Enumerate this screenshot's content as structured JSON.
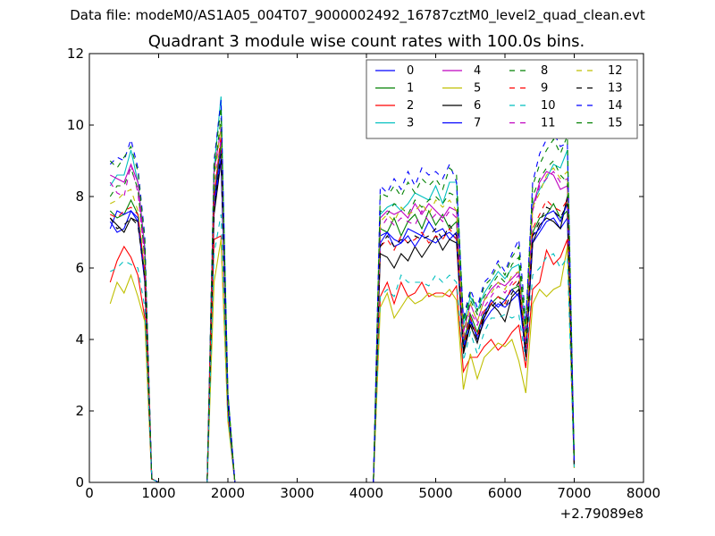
{
  "supertitle": "Data file: modeM0/AS1A05_004T07_9000002492_16787cztM0_level2_quad_clean.evt",
  "chart_data": {
    "type": "line",
    "title": "Quadrant 3 module wise count rates with 100.0s bins.",
    "xlabel": "",
    "ylabel": "",
    "x_offset_label": "+2.79089e8",
    "xlim": [
      0,
      8000
    ],
    "ylim": [
      0,
      12
    ],
    "xticks": [
      "0",
      "1000",
      "2000",
      "3000",
      "4000",
      "5000",
      "6000",
      "7000",
      "8000"
    ],
    "yticks": [
      "0",
      "2",
      "4",
      "6",
      "8",
      "10",
      "12"
    ],
    "legend_position": "top-right",
    "legend_columns": 4,
    "x": [
      300,
      400,
      500,
      600,
      700,
      800,
      900,
      1000,
      1100,
      1200,
      1300,
      1400,
      1500,
      1600,
      1700,
      1800,
      1900,
      2000,
      2100,
      2200,
      2300,
      2400,
      2500,
      2600,
      2700,
      2800,
      2900,
      3000,
      3100,
      3200,
      3300,
      3400,
      3500,
      3600,
      3700,
      3800,
      3900,
      4000,
      4100,
      4200,
      4300,
      4400,
      4500,
      4600,
      4700,
      4800,
      4900,
      5000,
      5100,
      5200,
      5300,
      5400,
      5500,
      5600,
      5700,
      5800,
      5900,
      6000,
      6100,
      6200,
      6300,
      6400,
      6500,
      6600,
      6700,
      6800,
      6900,
      7000
    ],
    "series": [
      {
        "name": "0",
        "color": "#0000ff",
        "dash": false,
        "values": [
          7.3,
          7.0,
          7.1,
          7.6,
          7.3,
          5.6,
          0.1,
          0,
          0,
          0,
          0,
          0,
          0,
          0,
          0,
          7.8,
          9.4,
          2.1,
          0,
          0,
          0,
          0,
          0,
          0,
          0,
          0,
          0,
          0,
          0,
          0,
          0,
          0,
          0,
          0,
          0,
          0,
          0,
          0,
          0,
          6.9,
          7.0,
          6.8,
          6.7,
          7.1,
          7.0,
          6.9,
          7.3,
          7.0,
          7.1,
          6.8,
          7.0,
          3.7,
          4.6,
          4.0,
          4.5,
          4.8,
          5.0,
          4.9,
          5.1,
          5.3,
          3.6,
          6.7,
          7.0,
          7.3,
          7.4,
          7.1,
          7.4,
          0.5
        ]
      },
      {
        "name": "1",
        "color": "#008000",
        "dash": false,
        "values": [
          7.6,
          7.4,
          7.5,
          7.9,
          7.5,
          5.8,
          0.1,
          0,
          0,
          0,
          0,
          0,
          0,
          0,
          0,
          8.0,
          9.5,
          2.2,
          0,
          0,
          0,
          0,
          0,
          0,
          0,
          0,
          0,
          0,
          0,
          0,
          0,
          0,
          0,
          0,
          0,
          0,
          0,
          0,
          0,
          7.1,
          7.0,
          7.4,
          6.9,
          7.3,
          7.5,
          7.1,
          7.6,
          7.2,
          7.5,
          7.1,
          7.3,
          3.9,
          4.7,
          4.2,
          4.8,
          5.0,
          5.2,
          5.1,
          5.4,
          5.5,
          3.7,
          7.0,
          7.4,
          7.5,
          7.8,
          7.4,
          7.6,
          0.5
        ]
      },
      {
        "name": "2",
        "color": "#ff0000",
        "dash": false,
        "values": [
          5.6,
          6.2,
          6.6,
          6.3,
          5.8,
          4.6,
          0.1,
          0,
          0,
          0,
          0,
          0,
          0,
          0,
          0,
          6.8,
          6.9,
          1.8,
          0,
          0,
          0,
          0,
          0,
          0,
          0,
          0,
          0,
          0,
          0,
          0,
          0,
          0,
          0,
          0,
          0,
          0,
          0,
          0,
          0,
          5.2,
          5.6,
          5.0,
          5.6,
          5.2,
          5.3,
          5.6,
          5.2,
          5.3,
          5.3,
          5.2,
          5.5,
          3.1,
          3.5,
          3.5,
          3.8,
          4.0,
          3.7,
          3.9,
          4.2,
          4.4,
          3.2,
          5.4,
          5.6,
          6.5,
          6.1,
          6.3,
          6.8,
          0.4
        ]
      },
      {
        "name": "3",
        "color": "#00bfbf",
        "dash": false,
        "values": [
          8.3,
          8.6,
          8.6,
          9.3,
          8.4,
          6.6,
          0.1,
          0,
          0,
          0,
          0,
          0,
          0,
          0,
          0,
          8.8,
          10.8,
          2.5,
          0,
          0,
          0,
          0,
          0,
          0,
          0,
          0,
          0,
          0,
          0,
          0,
          0,
          0,
          0,
          0,
          0,
          0,
          0,
          0,
          0,
          7.5,
          7.7,
          7.8,
          7.6,
          7.8,
          8.1,
          8.0,
          7.9,
          8.3,
          7.8,
          8.4,
          8.4,
          4.4,
          5.2,
          4.8,
          5.3,
          5.6,
          5.9,
          5.7,
          6.0,
          6.1,
          4.2,
          7.8,
          8.2,
          8.5,
          8.9,
          8.8,
          9.3,
          0.6
        ]
      },
      {
        "name": "4",
        "color": "#bf00bf",
        "dash": false,
        "values": [
          8.6,
          8.5,
          8.4,
          8.9,
          8.4,
          6.5,
          0.1,
          0,
          0,
          0,
          0,
          0,
          0,
          0,
          0,
          8.7,
          9.9,
          2.4,
          0,
          0,
          0,
          0,
          0,
          0,
          0,
          0,
          0,
          0,
          0,
          0,
          0,
          0,
          0,
          0,
          0,
          0,
          0,
          0,
          0,
          7.4,
          7.6,
          7.5,
          7.6,
          7.4,
          7.8,
          7.5,
          7.8,
          7.6,
          7.4,
          7.7,
          7.6,
          4.2,
          5.0,
          4.5,
          5.1,
          5.4,
          5.6,
          5.5,
          5.7,
          5.9,
          4.0,
          7.7,
          8.4,
          8.7,
          8.6,
          8.2,
          8.3,
          0.6
        ]
      },
      {
        "name": "5",
        "color": "#bfbf00",
        "dash": false,
        "values": [
          5.0,
          5.6,
          5.3,
          5.8,
          5.2,
          4.5,
          0.1,
          0,
          0,
          0,
          0,
          0,
          0,
          0,
          0,
          5.6,
          6.8,
          1.7,
          0,
          0,
          0,
          0,
          0,
          0,
          0,
          0,
          0,
          0,
          0,
          0,
          0,
          0,
          0,
          0,
          0,
          0,
          0,
          0,
          0,
          4.9,
          5.3,
          4.6,
          4.9,
          5.2,
          5.0,
          5.1,
          5.3,
          5.2,
          5.2,
          5.4,
          5.1,
          2.6,
          3.6,
          2.9,
          3.5,
          3.7,
          3.9,
          3.8,
          4.0,
          3.4,
          2.5,
          5.0,
          5.4,
          5.2,
          5.4,
          5.5,
          6.6,
          0.4
        ]
      },
      {
        "name": "6",
        "color": "#000000",
        "dash": false,
        "values": [
          7.4,
          7.2,
          7.0,
          7.4,
          7.3,
          5.7,
          0.1,
          0,
          0,
          0,
          0,
          0,
          0,
          0,
          0,
          7.5,
          9.0,
          2.1,
          0,
          0,
          0,
          0,
          0,
          0,
          0,
          0,
          0,
          0,
          0,
          0,
          0,
          0,
          0,
          0,
          0,
          0,
          0,
          0,
          0,
          6.4,
          6.3,
          6.0,
          6.4,
          6.2,
          6.6,
          6.3,
          6.6,
          6.9,
          6.5,
          6.8,
          6.7,
          3.6,
          4.4,
          3.9,
          4.6,
          5.0,
          4.8,
          4.5,
          5.2,
          5.4,
          3.5,
          6.7,
          7.2,
          7.4,
          7.3,
          7.1,
          8.0,
          0.5
        ]
      },
      {
        "name": "7",
        "color": "#0000ff",
        "dash": false,
        "values": [
          7.1,
          7.6,
          7.5,
          7.6,
          7.4,
          5.7,
          0.1,
          0,
          0,
          0,
          0,
          0,
          0,
          0,
          0,
          7.7,
          9.1,
          2.1,
          0,
          0,
          0,
          0,
          0,
          0,
          0,
          0,
          0,
          0,
          0,
          0,
          0,
          0,
          0,
          0,
          0,
          0,
          0,
          0,
          0,
          6.7,
          7.0,
          6.6,
          6.7,
          6.9,
          6.6,
          6.9,
          6.8,
          6.7,
          6.9,
          7.0,
          6.8,
          3.8,
          4.5,
          4.1,
          4.7,
          5.1,
          4.9,
          5.1,
          5.4,
          5.2,
          3.6,
          6.9,
          7.1,
          7.5,
          7.6,
          7.3,
          7.8,
          0.5
        ]
      },
      {
        "name": "8",
        "color": "#008000",
        "dash": true,
        "values": [
          8.0,
          8.3,
          8.3,
          8.8,
          8.2,
          6.3,
          0.1,
          0,
          0,
          0,
          0,
          0,
          0,
          0,
          0,
          8.6,
          10.2,
          2.4,
          0,
          0,
          0,
          0,
          0,
          0,
          0,
          0,
          0,
          0,
          0,
          0,
          0,
          0,
          0,
          0,
          0,
          0,
          0,
          0,
          0,
          7.6,
          7.5,
          7.8,
          7.7,
          7.5,
          7.9,
          7.7,
          7.9,
          8.0,
          7.8,
          8.1,
          8.0,
          4.3,
          5.1,
          4.7,
          5.2,
          5.5,
          5.8,
          5.6,
          6.1,
          6.3,
          4.1,
          8.0,
          8.5,
          8.8,
          9.0,
          8.6,
          8.4,
          0.6
        ]
      },
      {
        "name": "9",
        "color": "#ff0000",
        "dash": true,
        "values": [
          7.5,
          7.4,
          7.6,
          7.7,
          7.5,
          5.9,
          0.1,
          0,
          0,
          0,
          0,
          0,
          0,
          0,
          0,
          8.0,
          9.7,
          2.3,
          0,
          0,
          0,
          0,
          0,
          0,
          0,
          0,
          0,
          0,
          0,
          0,
          0,
          0,
          0,
          0,
          0,
          0,
          0,
          0,
          0,
          6.6,
          6.8,
          6.5,
          6.9,
          6.7,
          6.8,
          7.0,
          6.7,
          6.9,
          6.8,
          7.1,
          6.8,
          3.8,
          4.6,
          4.1,
          4.8,
          5.0,
          5.2,
          5.0,
          5.5,
          5.7,
          3.7,
          7.1,
          7.5,
          7.9,
          7.7,
          7.6,
          7.9,
          0.5
        ]
      },
      {
        "name": "10",
        "color": "#00bfbf",
        "dash": true,
        "values": [
          5.9,
          6.0,
          6.2,
          6.1,
          6.0,
          4.9,
          0.1,
          0,
          0,
          0,
          0,
          0,
          0,
          0,
          0,
          6.4,
          7.5,
          1.9,
          0,
          0,
          0,
          0,
          0,
          0,
          0,
          0,
          0,
          0,
          0,
          0,
          0,
          0,
          0,
          0,
          0,
          0,
          0,
          0,
          0,
          5.2,
          5.4,
          5.2,
          5.8,
          5.6,
          5.6,
          5.6,
          5.5,
          5.8,
          5.6,
          5.8,
          5.6,
          3.4,
          4.2,
          3.6,
          4.2,
          4.6,
          4.6,
          4.7,
          4.6,
          4.7,
          3.4,
          5.8,
          6.0,
          6.3,
          6.4,
          6.0,
          6.3,
          0.4
        ]
      },
      {
        "name": "11",
        "color": "#bf00bf",
        "dash": true,
        "values": [
          8.4,
          8.1,
          8.0,
          8.9,
          8.1,
          6.3,
          0.1,
          0,
          0,
          0,
          0,
          0,
          0,
          0,
          0,
          8.2,
          9.6,
          2.3,
          0,
          0,
          0,
          0,
          0,
          0,
          0,
          0,
          0,
          0,
          0,
          0,
          0,
          0,
          0,
          0,
          0,
          0,
          0,
          0,
          0,
          7.1,
          7.4,
          7.2,
          7.4,
          7.3,
          7.2,
          7.6,
          7.3,
          7.5,
          7.3,
          7.6,
          7.4,
          4.0,
          4.8,
          4.4,
          4.9,
          5.2,
          5.5,
          5.3,
          5.6,
          5.8,
          3.9,
          7.6,
          8.3,
          8.5,
          8.7,
          8.4,
          8.5,
          0.6
        ]
      },
      {
        "name": "12",
        "color": "#bfbf00",
        "dash": true,
        "values": [
          7.8,
          7.9,
          8.1,
          8.2,
          7.6,
          6.1,
          0.1,
          0,
          0,
          0,
          0,
          0,
          0,
          0,
          0,
          8.3,
          10.0,
          2.4,
          0,
          0,
          0,
          0,
          0,
          0,
          0,
          0,
          0,
          0,
          0,
          0,
          0,
          0,
          0,
          0,
          0,
          0,
          0,
          0,
          0,
          7.3,
          7.5,
          7.3,
          7.7,
          7.5,
          7.6,
          7.8,
          7.5,
          7.9,
          7.7,
          7.9,
          7.6,
          4.1,
          5.0,
          4.5,
          5.1,
          5.3,
          5.6,
          5.4,
          5.8,
          5.9,
          4.0,
          7.7,
          8.1,
          8.6,
          8.8,
          8.5,
          8.7,
          0.6
        ]
      },
      {
        "name": "13",
        "color": "#000000",
        "dash": true,
        "values": [
          7.4,
          7.1,
          7.2,
          7.4,
          7.2,
          5.7,
          0.1,
          0,
          0,
          0,
          0,
          0,
          0,
          0,
          0,
          7.6,
          9.2,
          2.2,
          0,
          0,
          0,
          0,
          0,
          0,
          0,
          0,
          0,
          0,
          0,
          0,
          0,
          0,
          0,
          0,
          0,
          0,
          0,
          0,
          0,
          6.6,
          6.9,
          6.6,
          6.8,
          6.7,
          6.9,
          6.8,
          6.9,
          7.1,
          6.8,
          7.2,
          6.9,
          3.7,
          4.5,
          4.0,
          4.7,
          4.9,
          5.1,
          4.9,
          5.3,
          5.6,
          3.6,
          6.9,
          7.3,
          7.7,
          7.6,
          7.4,
          7.8,
          0.5
        ]
      },
      {
        "name": "14",
        "color": "#0000ff",
        "dash": true,
        "values": [
          8.9,
          9.1,
          9.0,
          9.6,
          8.8,
          6.9,
          0.1,
          0,
          0,
          0,
          0,
          0,
          0,
          0,
          0,
          9.0,
          10.7,
          2.5,
          0,
          0,
          0,
          0,
          0,
          0,
          0,
          0,
          0,
          0,
          0,
          0,
          0,
          0,
          0,
          0,
          0,
          0,
          0,
          0,
          0,
          8.3,
          8.1,
          8.5,
          8.2,
          8.7,
          8.3,
          8.8,
          8.6,
          8.7,
          8.5,
          8.9,
          8.4,
          4.6,
          5.4,
          4.9,
          5.6,
          5.8,
          6.2,
          5.9,
          6.4,
          6.8,
          4.5,
          8.4,
          9.2,
          9.6,
          9.8,
          9.4,
          9.5,
          0.6
        ]
      },
      {
        "name": "15",
        "color": "#008000",
        "dash": true,
        "values": [
          9.0,
          8.8,
          9.1,
          9.4,
          8.7,
          6.8,
          0.1,
          0,
          0,
          0,
          0,
          0,
          0,
          0,
          0,
          8.9,
          10.5,
          2.5,
          0,
          0,
          0,
          0,
          0,
          0,
          0,
          0,
          0,
          0,
          0,
          0,
          0,
          0,
          0,
          0,
          0,
          0,
          0,
          0,
          0,
          8.1,
          8.0,
          8.3,
          8.0,
          8.4,
          8.1,
          8.5,
          8.3,
          8.5,
          8.2,
          8.8,
          8.6,
          4.5,
          5.3,
          4.8,
          5.5,
          5.7,
          6.1,
          5.8,
          6.3,
          6.6,
          4.4,
          8.3,
          8.9,
          9.3,
          9.6,
          9.2,
          9.7,
          0.6
        ]
      }
    ]
  }
}
